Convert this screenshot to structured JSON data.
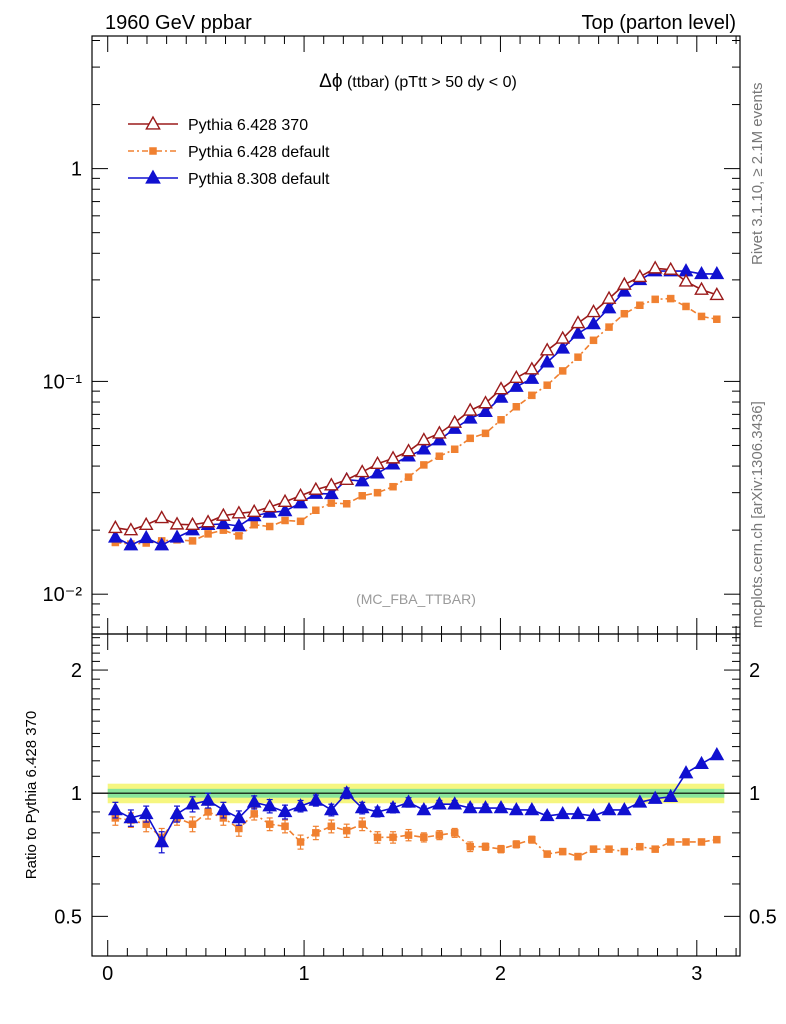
{
  "header": {
    "left": "1960 GeV ppbar",
    "right": "Top (parton level)"
  },
  "side_labels": {
    "rivet": "Rivet 3.1.10, ≥ 2.1M events",
    "mcplots": "mcplots.cern.ch [arXiv:1306.3436]"
  },
  "chart_data": {
    "type": "line",
    "title_symbol": "Δϕ",
    "title_text": " (ttbar) (pTtt > 50 dy < 0)",
    "watermark": "(MC_FBA_TTBAR)",
    "xlim": [
      -0.08,
      3.22
    ],
    "ylim": [
      0.0065,
      4.2
    ],
    "yscale": "log",
    "x_ticks": [
      "0",
      "1",
      "2",
      "3"
    ],
    "y_ticks": [
      "1",
      "10⁻¹",
      "10⁻²"
    ],
    "legend_position": "top-left",
    "x": [
      0.039,
      0.118,
      0.196,
      0.275,
      0.353,
      0.432,
      0.511,
      0.589,
      0.668,
      0.746,
      0.825,
      0.903,
      0.982,
      1.06,
      1.139,
      1.217,
      1.296,
      1.374,
      1.453,
      1.532,
      1.61,
      1.689,
      1.767,
      1.846,
      1.924,
      2.003,
      2.081,
      2.16,
      2.238,
      2.317,
      2.395,
      2.474,
      2.553,
      2.631,
      2.71,
      2.788,
      2.867,
      2.945,
      3.024,
      3.102
    ],
    "series": [
      {
        "name": "Pythia 6.428 370",
        "color": "#9b1b1b",
        "marker": "open-triangle",
        "line": "solid",
        "values": [
          0.0205,
          0.02,
          0.0212,
          0.0228,
          0.0213,
          0.0212,
          0.0218,
          0.0234,
          0.024,
          0.0244,
          0.0257,
          0.0272,
          0.029,
          0.031,
          0.0325,
          0.0345,
          0.0375,
          0.041,
          0.0435,
          0.047,
          0.053,
          0.057,
          0.064,
          0.073,
          0.079,
          0.092,
          0.104,
          0.114,
          0.14,
          0.159,
          0.188,
          0.212,
          0.245,
          0.285,
          0.31,
          0.34,
          0.335,
          0.295,
          0.27,
          0.255
        ]
      },
      {
        "name": "Pythia 6.428 default",
        "color": "#f08030",
        "marker": "filled-square",
        "line": "dashdot",
        "values": [
          0.0175,
          0.0172,
          0.0174,
          0.0178,
          0.018,
          0.0178,
          0.0192,
          0.02,
          0.0188,
          0.0212,
          0.0208,
          0.0222,
          0.022,
          0.0248,
          0.0268,
          0.0266,
          0.029,
          0.03,
          0.032,
          0.0355,
          0.0405,
          0.0445,
          0.048,
          0.054,
          0.057,
          0.066,
          0.076,
          0.086,
          0.096,
          0.112,
          0.13,
          0.156,
          0.18,
          0.208,
          0.228,
          0.243,
          0.245,
          0.225,
          0.202,
          0.196
        ]
      },
      {
        "name": "Pythia 8.308 default",
        "color": "#1010d0",
        "marker": "filled-triangle",
        "line": "solid",
        "values": [
          0.0185,
          0.017,
          0.0184,
          0.017,
          0.0185,
          0.02,
          0.0212,
          0.0214,
          0.0209,
          0.0233,
          0.0242,
          0.0246,
          0.0268,
          0.0297,
          0.0296,
          0.0345,
          0.034,
          0.037,
          0.0408,
          0.0445,
          0.048,
          0.053,
          0.06,
          0.067,
          0.072,
          0.084,
          0.0945,
          0.103,
          0.123,
          0.143,
          0.168,
          0.186,
          0.221,
          0.265,
          0.3,
          0.33,
          0.33,
          0.33,
          0.32,
          0.32
        ]
      }
    ],
    "ratio": {
      "ylabel": "Ratio to Pythia 6.428 370",
      "ylim": [
        0.4,
        2.45
      ],
      "yscale": "log",
      "y_ticks": [
        "2",
        "1",
        "0.5"
      ],
      "band_inner": 0.025,
      "band_outer": 0.055,
      "band_colors": [
        "#f5f56a",
        "#74e0a0"
      ],
      "series": [
        {
          "name": "Pythia 6.428 default",
          "values": [
            0.87,
            0.86,
            0.84,
            0.78,
            0.87,
            0.84,
            0.9,
            0.87,
            0.82,
            0.89,
            0.84,
            0.83,
            0.76,
            0.8,
            0.83,
            0.81,
            0.84,
            0.78,
            0.78,
            0.79,
            0.78,
            0.79,
            0.8,
            0.74,
            0.74,
            0.73,
            0.75,
            0.77,
            0.71,
            0.72,
            0.7,
            0.73,
            0.73,
            0.72,
            0.74,
            0.73,
            0.76,
            0.76,
            0.76,
            0.77
          ],
          "errors": [
            0.035,
            0.035,
            0.035,
            0.04,
            0.035,
            0.035,
            0.035,
            0.035,
            0.035,
            0.03,
            0.03,
            0.03,
            0.03,
            0.03,
            0.03,
            0.03,
            0.03,
            0.025,
            0.025,
            0.025,
            0.02,
            0.02,
            0.02,
            0.02,
            0.015,
            0.015,
            0.015,
            0.015,
            0.012,
            0.012,
            0.012,
            0.012,
            0.01,
            0.01,
            0.01,
            0.01,
            0.01,
            0.01,
            0.012,
            0.012
          ]
        },
        {
          "name": "Pythia 8.308 default",
          "values": [
            0.91,
            0.87,
            0.89,
            0.76,
            0.89,
            0.94,
            0.96,
            0.91,
            0.87,
            0.95,
            0.93,
            0.9,
            0.93,
            0.96,
            0.91,
            1.0,
            0.92,
            0.9,
            0.92,
            0.95,
            0.91,
            0.94,
            0.94,
            0.92,
            0.92,
            0.92,
            0.91,
            0.91,
            0.88,
            0.89,
            0.89,
            0.88,
            0.91,
            0.91,
            0.95,
            0.97,
            0.98,
            1.12,
            1.18,
            1.24
          ],
          "errors": [
            0.04,
            0.04,
            0.04,
            0.045,
            0.04,
            0.04,
            0.04,
            0.04,
            0.035,
            0.035,
            0.035,
            0.035,
            0.03,
            0.03,
            0.03,
            0.03,
            0.03,
            0.025,
            0.025,
            0.025,
            0.02,
            0.02,
            0.02,
            0.02,
            0.02,
            0.015,
            0.015,
            0.015,
            0.015,
            0.012,
            0.012,
            0.012,
            0.012,
            0.01,
            0.01,
            0.01,
            0.01,
            0.012,
            0.012,
            0.012
          ]
        }
      ]
    }
  }
}
